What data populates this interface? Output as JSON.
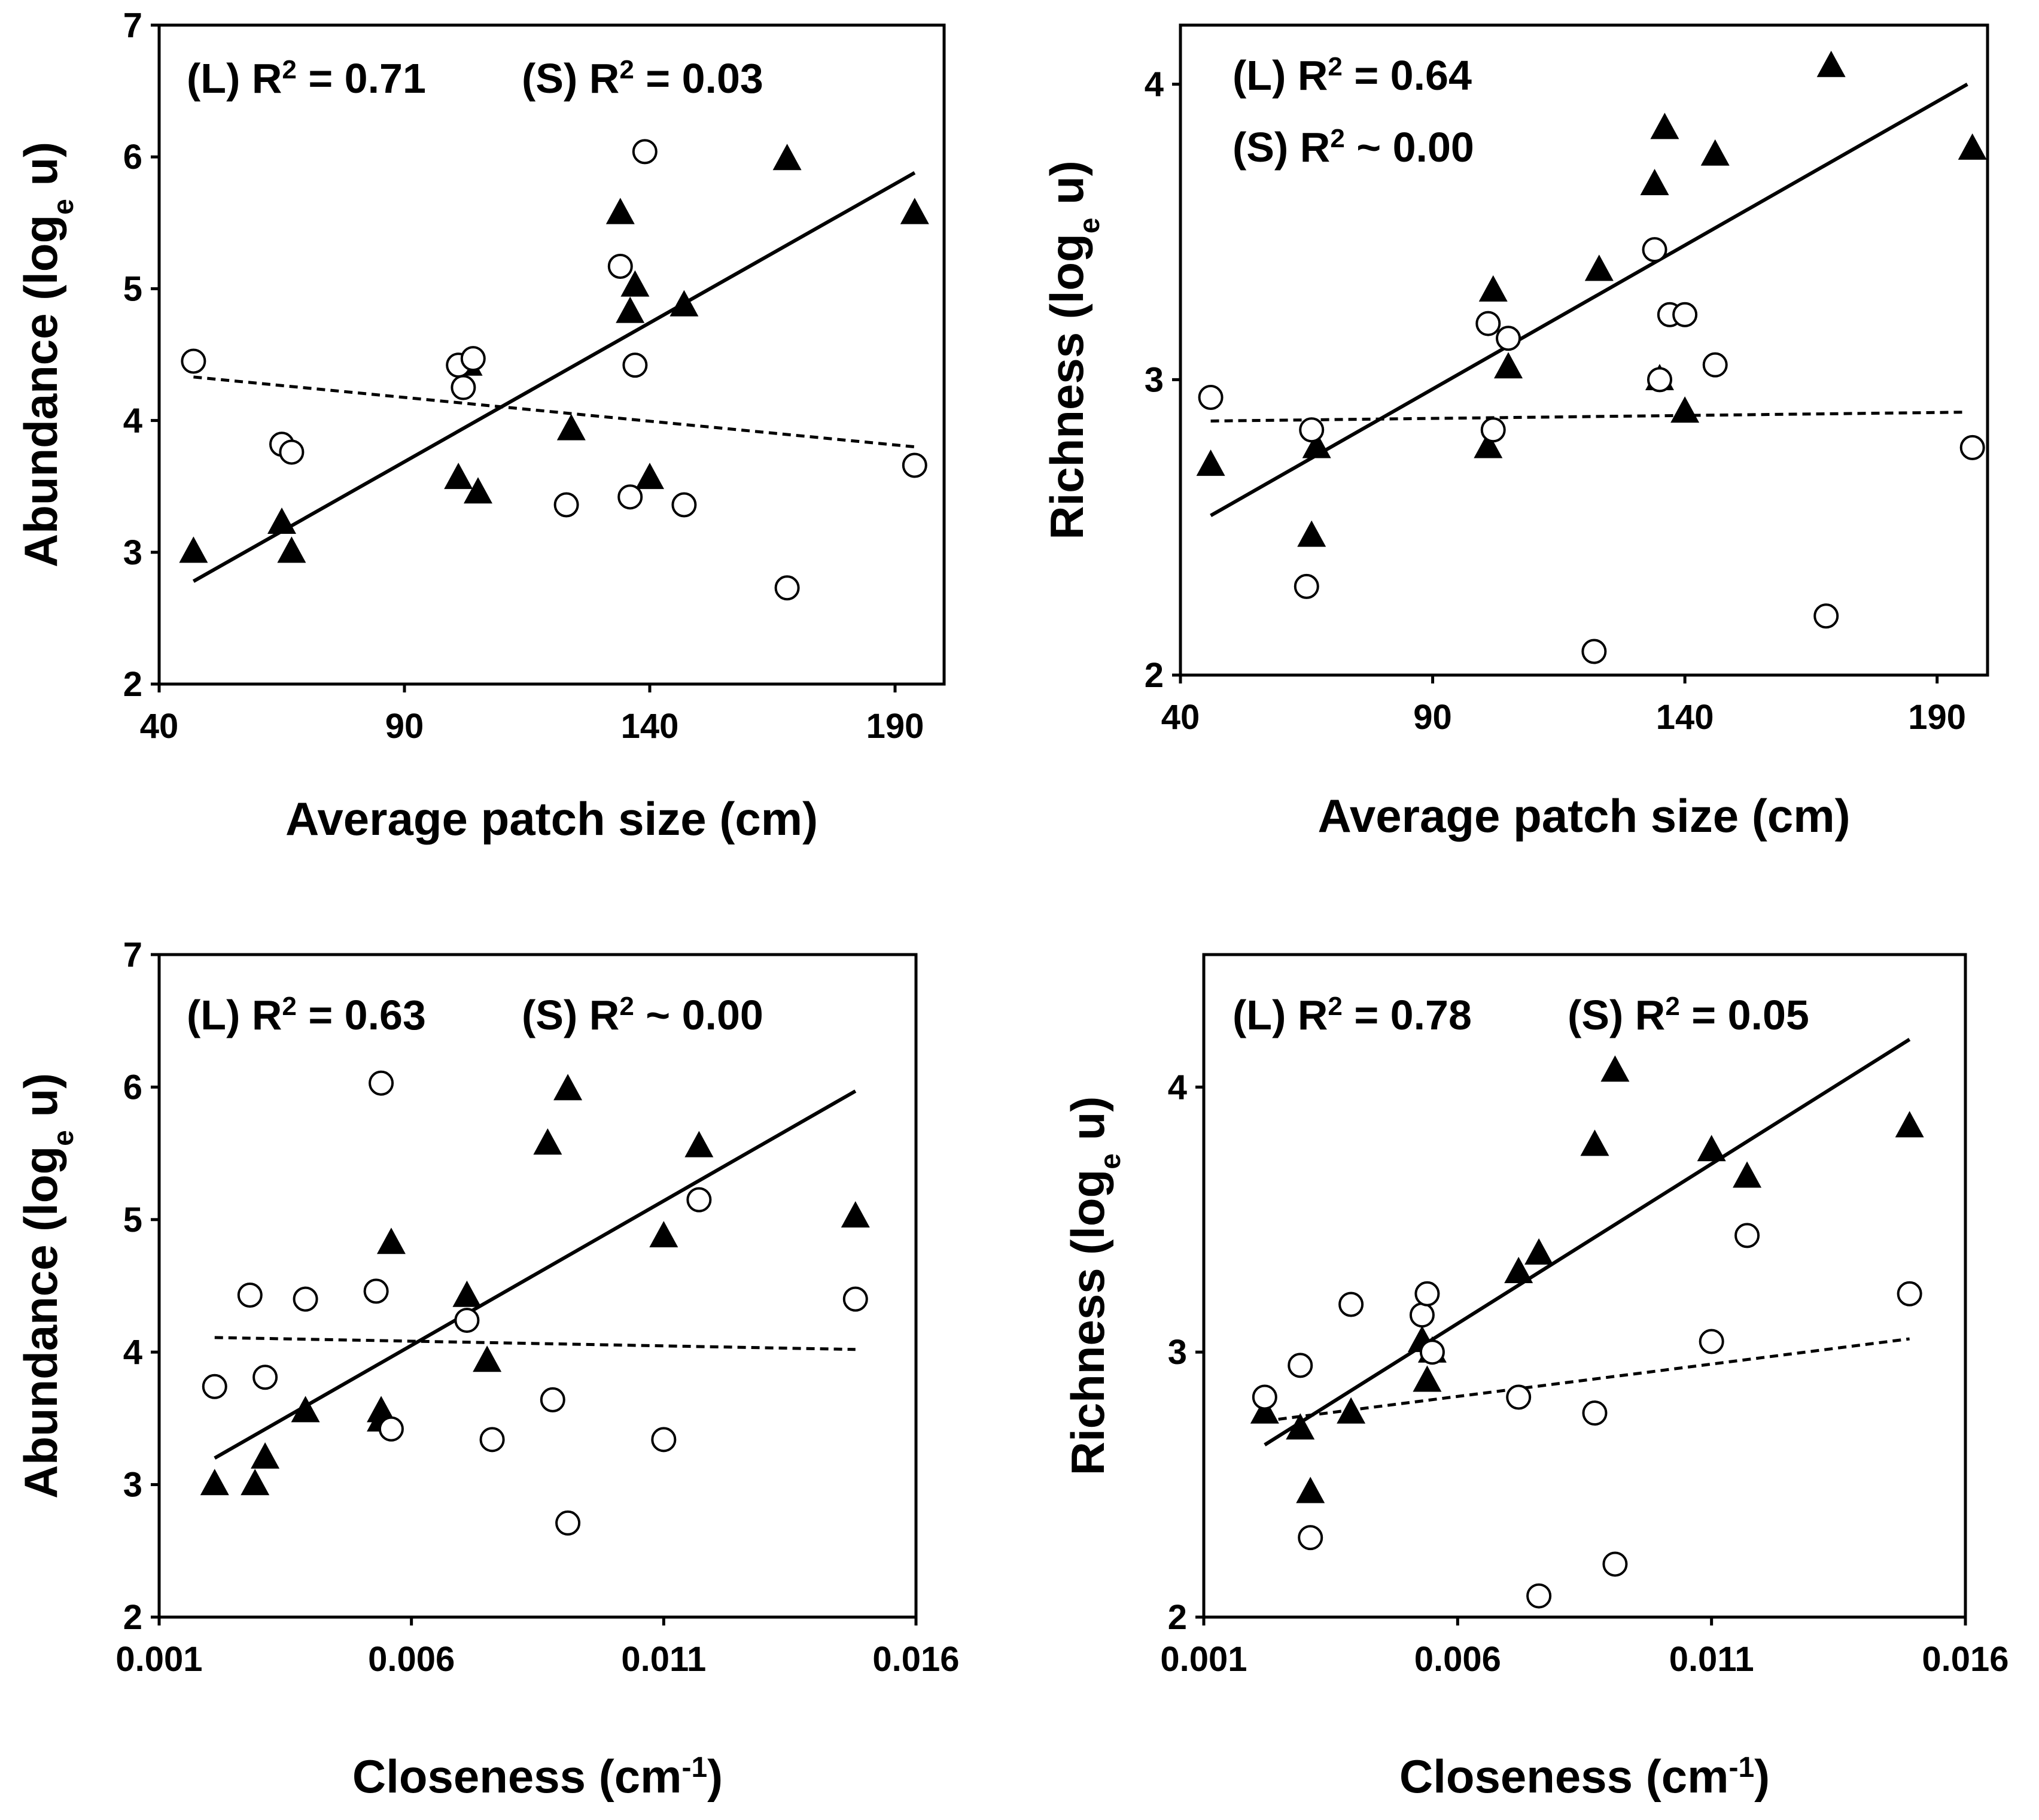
{
  "chart_data": [
    {
      "type": "scatter",
      "id": "a",
      "xlabel": "Average patch size (cm)",
      "ylabel_main": "Abundance (log",
      "ylabel_sub": "e",
      "ylabel_end": " u)",
      "xlim": [
        40,
        200
      ],
      "ylim": [
        2,
        7
      ],
      "xticks": [
        40,
        90,
        140,
        190
      ],
      "yticks": [
        2,
        3,
        4,
        5,
        6,
        7
      ],
      "xtick_labels": [
        "40",
        "90",
        "140",
        "190"
      ],
      "ytick_labels": [
        "2",
        "3",
        "4",
        "5",
        "6",
        "7"
      ],
      "annotations": [
        {
          "lines": [
            {
              "pre": "(L) R",
              "sup": "2",
              "post": " = 0.71"
            },
            {
              "pre": "(S) R",
              "sup": "2",
              "post": " = 0.03"
            }
          ],
          "layout": "row"
        }
      ],
      "series": [
        {
          "name": "L",
          "marker": "triangle",
          "points": [
            [
              47,
              3.0
            ],
            [
              65,
              3.22
            ],
            [
              67,
              3.0
            ],
            [
              101,
              3.56
            ],
            [
              103,
              4.42
            ],
            [
              105,
              3.45
            ],
            [
              124,
              3.93
            ],
            [
              134,
              5.57
            ],
            [
              136,
              4.82
            ],
            [
              137,
              5.02
            ],
            [
              140,
              3.56
            ],
            [
              147,
              4.87
            ],
            [
              168,
              5.98
            ],
            [
              194,
              5.57
            ]
          ]
        },
        {
          "name": "S",
          "marker": "circle",
          "points": [
            [
              47,
              4.45
            ],
            [
              65,
              3.82
            ],
            [
              67,
              3.76
            ],
            [
              101,
              4.42
            ],
            [
              102,
              4.25
            ],
            [
              104,
              4.47
            ],
            [
              123,
              3.36
            ],
            [
              134,
              5.17
            ],
            [
              136,
              3.42
            ],
            [
              137,
              4.42
            ],
            [
              139,
              6.04
            ],
            [
              147,
              3.36
            ],
            [
              168,
              2.73
            ],
            [
              194,
              3.66
            ]
          ]
        }
      ],
      "fits": [
        {
          "name": "L",
          "style": "solid",
          "x": [
            47,
            194
          ],
          "y": [
            2.78,
            5.88
          ]
        },
        {
          "name": "S",
          "style": "dashed",
          "x": [
            47,
            194
          ],
          "y": [
            4.33,
            3.8
          ]
        }
      ]
    },
    {
      "type": "scatter",
      "id": "b",
      "xlabel": "Average patch size (cm)",
      "ylabel_main": "Richness (log",
      "ylabel_sub": "e",
      "ylabel_end": " u)",
      "xlim": [
        40,
        200
      ],
      "ylim": [
        2,
        4.2
      ],
      "xticks": [
        40,
        90,
        140,
        190
      ],
      "yticks": [
        2,
        3,
        4
      ],
      "xtick_labels": [
        "40",
        "90",
        "140",
        "190"
      ],
      "ytick_labels": [
        "2",
        "3",
        "4"
      ],
      "annotations": [
        {
          "lines": [
            {
              "pre": "(L) R",
              "sup": "2",
              "post": " = 0.64"
            },
            {
              "pre": "(S) R",
              "sup": "2",
              "post": " ~ 0.00"
            }
          ],
          "layout": "column"
        }
      ],
      "series": [
        {
          "name": "L",
          "marker": "triangle",
          "points": [
            [
              46,
              2.71
            ],
            [
              66,
              2.47
            ],
            [
              67,
              2.77
            ],
            [
              101,
              2.77
            ],
            [
              102,
              3.3
            ],
            [
              105,
              3.04
            ],
            [
              123,
              3.37
            ],
            [
              134,
              3.66
            ],
            [
              135,
              3.0
            ],
            [
              136,
              3.85
            ],
            [
              140,
              2.89
            ],
            [
              146,
              3.76
            ],
            [
              169,
              4.06
            ],
            [
              197,
              3.78
            ]
          ]
        },
        {
          "name": "S",
          "marker": "circle",
          "points": [
            [
              46,
              2.94
            ],
            [
              65,
              2.3
            ],
            [
              66,
              2.83
            ],
            [
              101,
              3.19
            ],
            [
              102,
              2.83
            ],
            [
              105,
              3.14
            ],
            [
              122,
              2.08
            ],
            [
              134,
              3.44
            ],
            [
              135,
              3.0
            ],
            [
              137,
              3.22
            ],
            [
              140,
              3.22
            ],
            [
              146,
              3.05
            ],
            [
              168,
              2.2
            ],
            [
              197,
              2.77
            ]
          ]
        }
      ],
      "fits": [
        {
          "name": "L",
          "style": "solid",
          "x": [
            46,
            196
          ],
          "y": [
            2.54,
            4.0
          ]
        },
        {
          "name": "S",
          "style": "dashed",
          "x": [
            46,
            196
          ],
          "y": [
            2.86,
            2.89
          ]
        }
      ]
    },
    {
      "type": "scatter",
      "id": "c",
      "xlabel_main": "Closeness (cm",
      "xlabel_sup": "-1",
      "xlabel_end": ")",
      "ylabel_main": "Abundance (log",
      "ylabel_sub": "e",
      "ylabel_end": " u)",
      "xlim": [
        0.001,
        0.016
      ],
      "ylim": [
        2,
        7
      ],
      "xticks": [
        0.001,
        0.006,
        0.011,
        0.016
      ],
      "yticks": [
        2,
        3,
        4,
        5,
        6,
        7
      ],
      "xtick_labels": [
        "0.001",
        "0.006",
        "0.011",
        "0.016"
      ],
      "ytick_labels": [
        "2",
        "3",
        "4",
        "5",
        "6",
        "7"
      ],
      "annotations": [
        {
          "lines": [
            {
              "pre": "(L) R",
              "sup": "2",
              "post": " = 0.63"
            },
            {
              "pre": "(S) R",
              "sup": "2",
              "post": " ~ 0.00"
            }
          ],
          "layout": "row"
        }
      ],
      "series": [
        {
          "name": "L",
          "marker": "triangle",
          "points": [
            [
              0.0021,
              3.0
            ],
            [
              0.0029,
              3.0
            ],
            [
              0.0031,
              3.2
            ],
            [
              0.0039,
              3.55
            ],
            [
              0.0054,
              3.48
            ],
            [
              0.0056,
              4.82
            ],
            [
              0.0071,
              4.42
            ],
            [
              0.0075,
              3.93
            ],
            [
              0.0087,
              5.57
            ],
            [
              0.0091,
              5.98
            ],
            [
              0.011,
              4.87
            ],
            [
              0.0117,
              5.55
            ],
            [
              0.0148,
              5.02
            ],
            [
              0.0054,
              3.55
            ]
          ]
        },
        {
          "name": "S",
          "marker": "circle",
          "points": [
            [
              0.0021,
              3.74
            ],
            [
              0.0028,
              4.43
            ],
            [
              0.0031,
              3.81
            ],
            [
              0.0039,
              4.4
            ],
            [
              0.0053,
              4.46
            ],
            [
              0.0054,
              6.03
            ],
            [
              0.0056,
              3.42
            ],
            [
              0.0071,
              4.24
            ],
            [
              0.0076,
              3.34
            ],
            [
              0.0088,
              3.64
            ],
            [
              0.0091,
              2.71
            ],
            [
              0.011,
              3.34
            ],
            [
              0.0117,
              5.15
            ],
            [
              0.0148,
              4.4
            ]
          ]
        }
      ],
      "fits": [
        {
          "name": "L",
          "style": "solid",
          "x": [
            0.0021,
            0.0148
          ],
          "y": [
            3.2,
            5.97
          ]
        },
        {
          "name": "S",
          "style": "dashed",
          "x": [
            0.0021,
            0.0148
          ],
          "y": [
            4.11,
            4.02
          ]
        }
      ]
    },
    {
      "type": "scatter",
      "id": "d",
      "xlabel_main": "Closeness (cm",
      "xlabel_sup": "-1",
      "xlabel_end": ")",
      "ylabel_main": "Richness (log",
      "ylabel_sub": "e",
      "ylabel_end": " u)",
      "xlim": [
        0.001,
        0.016
      ],
      "ylim": [
        2,
        4.5
      ],
      "xticks": [
        0.001,
        0.006,
        0.011,
        0.016
      ],
      "yticks": [
        2,
        3,
        4
      ],
      "xtick_labels": [
        "0.001",
        "0.006",
        "0.011",
        "0.016"
      ],
      "ytick_labels": [
        "2",
        "3",
        "4"
      ],
      "annotations": [
        {
          "lines": [
            {
              "pre": "(L) R",
              "sup": "2",
              "post": " = 0.78"
            },
            {
              "pre": "(S) R",
              "sup": "2",
              "post": " = 0.05"
            }
          ],
          "layout": "row"
        }
      ],
      "series": [
        {
          "name": "L",
          "marker": "triangle",
          "points": [
            [
              0.0022,
              2.77
            ],
            [
              0.0029,
              2.71
            ],
            [
              0.0031,
              2.47
            ],
            [
              0.0039,
              2.77
            ],
            [
              0.0053,
              3.04
            ],
            [
              0.0054,
              2.89
            ],
            [
              0.0055,
              3.0
            ],
            [
              0.0072,
              3.3
            ],
            [
              0.0076,
              3.37
            ],
            [
              0.0087,
              3.78
            ],
            [
              0.0091,
              4.06
            ],
            [
              0.011,
              3.76
            ],
            [
              0.0117,
              3.66
            ],
            [
              0.0149,
              3.85
            ]
          ]
        },
        {
          "name": "S",
          "marker": "circle",
          "points": [
            [
              0.0022,
              2.83
            ],
            [
              0.0029,
              2.95
            ],
            [
              0.0031,
              2.3
            ],
            [
              0.0039,
              3.18
            ],
            [
              0.0053,
              3.14
            ],
            [
              0.0054,
              3.22
            ],
            [
              0.0055,
              3.0
            ],
            [
              0.0072,
              2.83
            ],
            [
              0.0076,
              2.08
            ],
            [
              0.0087,
              2.77
            ],
            [
              0.0091,
              2.2
            ],
            [
              0.011,
              3.04
            ],
            [
              0.0117,
              3.44
            ],
            [
              0.0149,
              3.22
            ]
          ]
        }
      ],
      "fits": [
        {
          "name": "L",
          "style": "solid",
          "x": [
            0.0022,
            0.0149
          ],
          "y": [
            2.65,
            4.18
          ]
        },
        {
          "name": "S",
          "style": "dashed",
          "x": [
            0.0022,
            0.0149
          ],
          "y": [
            2.74,
            3.05
          ]
        }
      ]
    }
  ]
}
